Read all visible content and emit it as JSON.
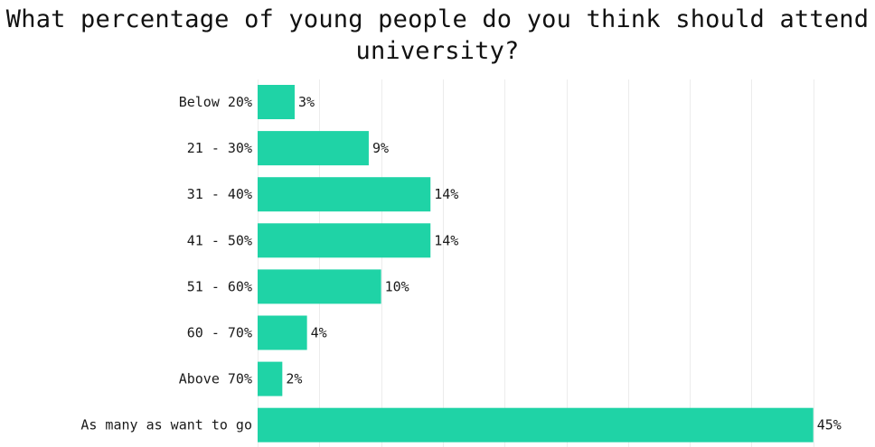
{
  "chart_data": {
    "type": "bar",
    "orientation": "horizontal",
    "title": "What percentage of young people do you think should attend university?",
    "categories": [
      "Below 20%",
      "21 - 30%",
      "31 - 40%",
      "41 - 50%",
      "51 - 60%",
      "60 - 70%",
      "Above 70%",
      "As many as want to go"
    ],
    "values": [
      3,
      9,
      14,
      14,
      10,
      4,
      2,
      45
    ],
    "value_labels": [
      "3%",
      "9%",
      "14%",
      "14%",
      "10%",
      "4%",
      "2%",
      "45%"
    ],
    "xlim": [
      0,
      50
    ],
    "grid": true,
    "bar_color": "#1fd3a6",
    "grid_color": "#ececec"
  }
}
